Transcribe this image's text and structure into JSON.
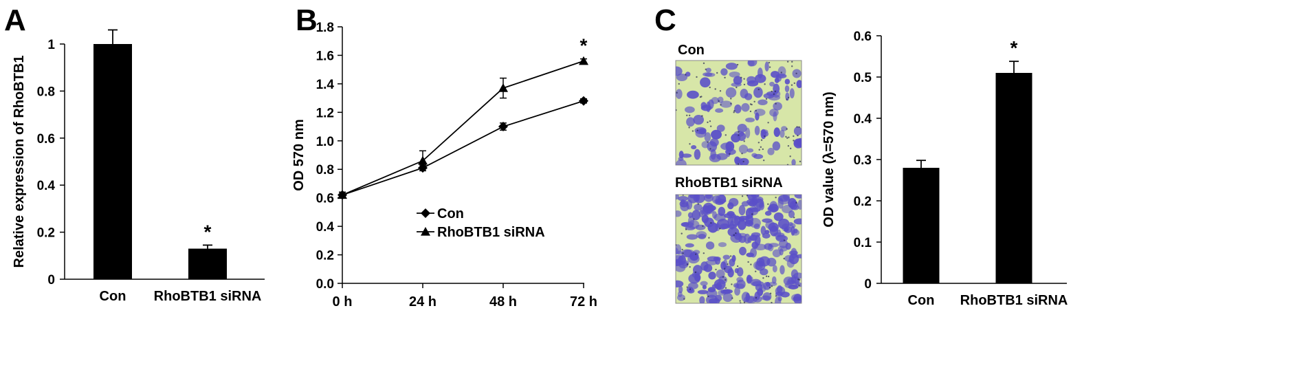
{
  "panels": {
    "a": {
      "letter": "A"
    },
    "b": {
      "letter": "B"
    },
    "c": {
      "letter": "C"
    }
  },
  "micrographs": {
    "top_label": "Con",
    "bottom_label": "RhoBTB1 siRNA",
    "stain_color": "#5a4fc8",
    "background_color": "#d7e6a8"
  },
  "chart_data": [
    {
      "id": "A",
      "type": "bar",
      "title": "",
      "categories": [
        "Con",
        "RhoBTB1 siRNA"
      ],
      "values": [
        1.0,
        0.13
      ],
      "errors": [
        0.06,
        0.015
      ],
      "significance": [
        "",
        "*"
      ],
      "ylabel": "Relative expression of  RhoBTB1",
      "xlabel": "",
      "ylim": [
        0,
        1.0
      ],
      "yticks": [
        0,
        0.2,
        0.4,
        0.6,
        0.8,
        1
      ],
      "ytick_labels": [
        "0",
        "0.2",
        "0.4",
        "0.6",
        "0.8",
        "1"
      ],
      "bar_color": "#000000",
      "grid": false
    },
    {
      "id": "B",
      "type": "line",
      "title": "",
      "categories": [
        "0 h",
        "24 h",
        "48 h",
        "72 h"
      ],
      "series": [
        {
          "name": "Con",
          "marker": "diamond",
          "values": [
            0.62,
            0.81,
            1.1,
            1.28
          ],
          "errors": [
            0.02,
            0.02,
            0.025,
            0.015
          ]
        },
        {
          "name": "RhoBTB1 siRNA",
          "marker": "triangle",
          "values": [
            0.62,
            0.86,
            1.37,
            1.56
          ],
          "errors": [
            0.02,
            0.07,
            0.07,
            0.015
          ]
        }
      ],
      "significance": [
        "",
        "",
        "",
        "*"
      ],
      "ylabel": "OD 570 nm",
      "xlabel": "",
      "ylim": [
        0.0,
        1.8
      ],
      "yticks": [
        0,
        0.2,
        0.4,
        0.6,
        0.8,
        1.0,
        1.2,
        1.4,
        1.6,
        1.8
      ],
      "ytick_labels": [
        "0.0",
        "0.2",
        "0.4",
        "0.6",
        "0.8",
        "1.0",
        "1.2",
        "1.4",
        "1.6",
        "1.8"
      ],
      "legend": "center",
      "grid": false
    },
    {
      "id": "C",
      "type": "bar",
      "title": "",
      "categories": [
        "Con",
        "RhoBTB1 siRNA"
      ],
      "values": [
        0.28,
        0.51
      ],
      "errors": [
        0.018,
        0.028
      ],
      "significance": [
        "",
        "*"
      ],
      "ylabel": "OD value (λ=570 nm)",
      "xlabel": "",
      "ylim": [
        0,
        0.6
      ],
      "yticks": [
        0,
        0.1,
        0.2,
        0.3,
        0.4,
        0.5,
        0.6
      ],
      "ytick_labels": [
        "0",
        "0.1",
        "0.2",
        "0.3",
        "0.4",
        "0.5",
        "0.6"
      ],
      "bar_color": "#000000",
      "grid": false
    }
  ]
}
